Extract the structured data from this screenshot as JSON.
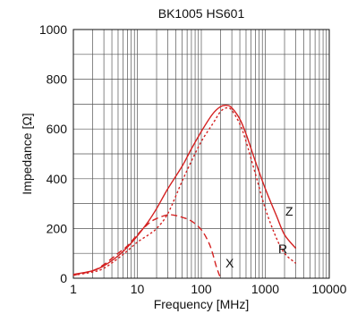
{
  "chart_data": {
    "type": "line",
    "title": "BK1005 HS601",
    "xlabel": "Frequency [MHz]",
    "ylabel": "Impedance [Ω]",
    "x_scale": "log",
    "xlim": [
      1,
      10000
    ],
    "ylim": [
      0,
      1000
    ],
    "x_ticks": [
      1,
      10,
      100,
      1000,
      10000
    ],
    "x_tick_labels": [
      "1",
      "10",
      "100",
      "1000",
      "10000"
    ],
    "y_ticks": [
      0,
      200,
      400,
      600,
      800,
      1000
    ],
    "y_tick_labels": [
      "0",
      "200",
      "400",
      "600",
      "800",
      "1000"
    ],
    "grid": true,
    "series_color": "#d42020",
    "series": [
      {
        "name": "Z",
        "style": "solid",
        "x": [
          1,
          2,
          3,
          5,
          7,
          10,
          15,
          20,
          30,
          50,
          70,
          100,
          150,
          200,
          250,
          300,
          400,
          500,
          700,
          1000,
          1500,
          2000,
          3000
        ],
        "values": [
          15,
          30,
          50,
          90,
          125,
          170,
          230,
          280,
          360,
          450,
          520,
          590,
          660,
          690,
          695,
          685,
          640,
          580,
          470,
          360,
          250,
          175,
          120
        ]
      },
      {
        "name": "R",
        "style": "dotted",
        "x": [
          1,
          2,
          3,
          5,
          7,
          10,
          15,
          20,
          30,
          50,
          70,
          100,
          150,
          200,
          250,
          300,
          400,
          500,
          700,
          1000,
          1500,
          2000,
          3000
        ],
        "values": [
          12,
          25,
          40,
          80,
          110,
          145,
          175,
          200,
          260,
          390,
          470,
          550,
          620,
          670,
          685,
          675,
          620,
          550,
          420,
          280,
          160,
          100,
          60
        ]
      },
      {
        "name": "X",
        "style": "dashed",
        "x": [
          1,
          2,
          3,
          5,
          7,
          10,
          15,
          20,
          30,
          40,
          50,
          70,
          100,
          130,
          150,
          170,
          190,
          200
        ],
        "values": [
          12,
          30,
          55,
          100,
          130,
          175,
          220,
          240,
          255,
          252,
          245,
          230,
          195,
          145,
          100,
          50,
          15,
          0
        ]
      }
    ]
  }
}
